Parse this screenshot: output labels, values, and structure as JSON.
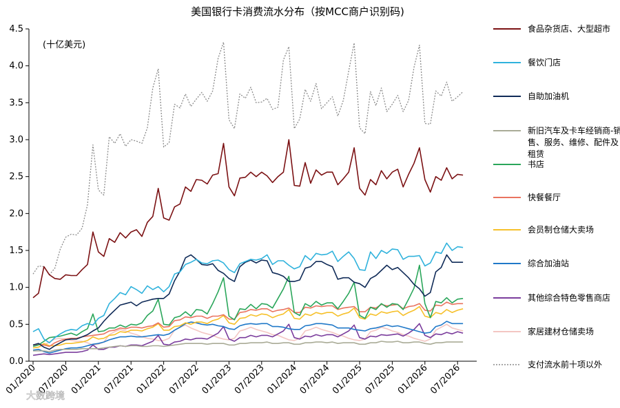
{
  "chart_data": {
    "type": "line",
    "title": "美国银行卡消费流水分布（按MCC商户识别码)",
    "unit_label": "(十亿美元)",
    "ylim": [
      0,
      4.5
    ],
    "y_ticks": [
      "0.0",
      "0.5",
      "1.0",
      "1.5",
      "2.0",
      "2.5",
      "3.0",
      "3.5",
      "4.0",
      "4.5"
    ],
    "x_ticks": [
      "01/2020",
      "07/2020",
      "01/2021",
      "07/2021",
      "01/2022",
      "07/2022",
      "01/2023",
      "07/2023",
      "01/2024",
      "07/2024",
      "01/2025",
      "07/2025",
      "01/2026",
      "07/2026"
    ],
    "x_start": "2020-01",
    "grid": false,
    "legend_position": "right",
    "watermark": "大数跨境",
    "series": [
      {
        "name": "食品杂货店、大型超市",
        "color": "#7b1113",
        "dash": "",
        "values": [
          0.86,
          0.92,
          1.28,
          1.17,
          1.12,
          1.11,
          1.17,
          1.16,
          1.16,
          1.24,
          1.31,
          1.75,
          1.48,
          1.42,
          1.66,
          1.61,
          1.74,
          1.67,
          1.75,
          1.78,
          1.69,
          1.88,
          1.96,
          2.34,
          1.94,
          1.91,
          2.09,
          2.13,
          2.36,
          2.3,
          2.46,
          2.45,
          2.4,
          2.52,
          2.54,
          2.95,
          2.36,
          2.24,
          2.48,
          2.49,
          2.56,
          2.5,
          2.56,
          2.51,
          2.42,
          2.5,
          2.56,
          3.0,
          2.38,
          2.37,
          2.69,
          2.41,
          2.59,
          2.52,
          2.56,
          2.56,
          2.39,
          2.47,
          2.56,
          2.89,
          2.34,
          2.25,
          2.46,
          2.39,
          2.58,
          2.47,
          2.56,
          2.6,
          2.36,
          2.53,
          2.68,
          2.89,
          2.46,
          2.29,
          2.5,
          2.45,
          2.62,
          2.47,
          2.53,
          2.52
        ]
      },
      {
        "name": "餐饮门店",
        "color": "#2fb2dc",
        "dash": "",
        "values": [
          0.4,
          0.44,
          0.3,
          0.25,
          0.32,
          0.37,
          0.41,
          0.43,
          0.42,
          0.48,
          0.51,
          0.49,
          0.58,
          0.62,
          0.78,
          0.85,
          0.93,
          0.9,
          1.01,
          0.97,
          0.92,
          1.02,
          0.97,
          1.01,
          0.94,
          1.01,
          1.18,
          1.21,
          1.31,
          1.34,
          1.38,
          1.33,
          1.32,
          1.36,
          1.37,
          1.33,
          1.24,
          1.2,
          1.32,
          1.35,
          1.38,
          1.37,
          1.39,
          1.44,
          1.31,
          1.36,
          1.36,
          1.3,
          1.25,
          1.28,
          1.43,
          1.37,
          1.46,
          1.44,
          1.45,
          1.49,
          1.35,
          1.42,
          1.48,
          1.39,
          1.24,
          1.23,
          1.48,
          1.39,
          1.5,
          1.46,
          1.52,
          1.51,
          1.38,
          1.42,
          1.42,
          1.43,
          1.29,
          1.33,
          1.48,
          1.46,
          1.6,
          1.5,
          1.55,
          1.54
        ]
      },
      {
        "name": "自助加油机",
        "color": "#0f2a57",
        "dash": "",
        "values": [
          0.22,
          0.24,
          0.19,
          0.16,
          0.21,
          0.25,
          0.29,
          0.3,
          0.3,
          0.33,
          0.36,
          0.41,
          0.45,
          0.54,
          0.62,
          0.69,
          0.76,
          0.78,
          0.8,
          0.75,
          0.8,
          0.82,
          0.84,
          0.85,
          0.85,
          0.91,
          1.09,
          1.22,
          1.4,
          1.44,
          1.38,
          1.31,
          1.3,
          1.32,
          1.23,
          1.19,
          1.12,
          1.08,
          1.28,
          1.34,
          1.37,
          1.33,
          1.37,
          1.36,
          1.2,
          1.18,
          1.15,
          1.08,
          1.08,
          1.1,
          1.26,
          1.28,
          1.35,
          1.35,
          1.31,
          1.28,
          1.11,
          1.13,
          1.13,
          1.07,
          1.05,
          1.0,
          1.12,
          1.16,
          1.23,
          1.3,
          1.24,
          1.27,
          1.2,
          1.13,
          1.04,
          0.98,
          0.88,
          0.93,
          1.21,
          1.27,
          1.44,
          1.34,
          1.34,
          1.34
        ]
      },
      {
        "name": "新旧汽车及卡车经销商-销售、服务、维修、配件及租赁",
        "color": "#a9ab96",
        "dash": "",
        "values": [
          0.14,
          0.14,
          0.14,
          0.13,
          0.15,
          0.16,
          0.16,
          0.16,
          0.16,
          0.17,
          0.17,
          0.17,
          0.17,
          0.18,
          0.19,
          0.2,
          0.21,
          0.2,
          0.21,
          0.21,
          0.2,
          0.2,
          0.21,
          0.21,
          0.2,
          0.21,
          0.22,
          0.23,
          0.24,
          0.24,
          0.24,
          0.24,
          0.23,
          0.24,
          0.24,
          0.24,
          0.22,
          0.22,
          0.24,
          0.24,
          0.25,
          0.25,
          0.25,
          0.26,
          0.24,
          0.24,
          0.25,
          0.25,
          0.23,
          0.23,
          0.25,
          0.25,
          0.26,
          0.26,
          0.25,
          0.26,
          0.24,
          0.25,
          0.25,
          0.25,
          0.23,
          0.23,
          0.25,
          0.25,
          0.27,
          0.26,
          0.26,
          0.27,
          0.25,
          0.25,
          0.26,
          0.26,
          0.24,
          0.23,
          0.25,
          0.25,
          0.26,
          0.26,
          0.26,
          0.26
        ]
      },
      {
        "name": "书店",
        "color": "#2aa65a",
        "dash": "",
        "values": [
          0.2,
          0.22,
          0.27,
          0.32,
          0.33,
          0.34,
          0.36,
          0.38,
          0.35,
          0.4,
          0.44,
          0.64,
          0.4,
          0.41,
          0.45,
          0.45,
          0.49,
          0.46,
          0.5,
          0.49,
          0.52,
          0.62,
          0.68,
          0.84,
          0.5,
          0.49,
          0.59,
          0.61,
          0.67,
          0.61,
          0.7,
          0.69,
          0.64,
          0.78,
          0.94,
          1.13,
          0.61,
          0.56,
          0.71,
          0.7,
          0.77,
          0.71,
          0.78,
          0.77,
          0.72,
          0.85,
          0.98,
          1.15,
          0.66,
          0.62,
          0.78,
          0.74,
          0.81,
          0.76,
          0.79,
          0.79,
          0.71,
          0.81,
          0.92,
          1.07,
          0.62,
          0.58,
          0.73,
          0.7,
          0.78,
          0.73,
          0.78,
          0.77,
          0.7,
          0.84,
          0.99,
          1.3,
          0.78,
          0.59,
          0.81,
          0.79,
          0.86,
          0.79,
          0.84,
          0.85
        ]
      },
      {
        "name": "快餐餐厅",
        "color": "#e9735f",
        "dash": "",
        "values": [
          0.22,
          0.23,
          0.22,
          0.2,
          0.25,
          0.28,
          0.3,
          0.31,
          0.31,
          0.33,
          0.34,
          0.35,
          0.36,
          0.37,
          0.41,
          0.42,
          0.45,
          0.44,
          0.46,
          0.46,
          0.45,
          0.47,
          0.48,
          0.52,
          0.46,
          0.47,
          0.55,
          0.56,
          0.6,
          0.59,
          0.61,
          0.61,
          0.58,
          0.61,
          0.61,
          0.63,
          0.57,
          0.57,
          0.66,
          0.67,
          0.7,
          0.69,
          0.71,
          0.71,
          0.67,
          0.69,
          0.7,
          0.72,
          0.66,
          0.66,
          0.73,
          0.72,
          0.75,
          0.74,
          0.75,
          0.75,
          0.7,
          0.72,
          0.73,
          0.74,
          0.67,
          0.67,
          0.73,
          0.72,
          0.77,
          0.75,
          0.76,
          0.77,
          0.71,
          0.74,
          0.75,
          0.78,
          0.69,
          0.68,
          0.76,
          0.75,
          0.8,
          0.77,
          0.78,
          0.78
        ]
      },
      {
        "name": "会员制仓储大卖场",
        "color": "#f6c02a",
        "dash": "",
        "values": [
          0.18,
          0.19,
          0.24,
          0.21,
          0.21,
          0.22,
          0.24,
          0.24,
          0.25,
          0.26,
          0.28,
          0.33,
          0.3,
          0.31,
          0.35,
          0.36,
          0.4,
          0.39,
          0.42,
          0.42,
          0.41,
          0.44,
          0.46,
          0.51,
          0.42,
          0.42,
          0.47,
          0.48,
          0.52,
          0.5,
          0.53,
          0.53,
          0.51,
          0.55,
          0.57,
          0.62,
          0.52,
          0.5,
          0.58,
          0.59,
          0.63,
          0.61,
          0.64,
          0.63,
          0.59,
          0.62,
          0.64,
          0.7,
          0.58,
          0.57,
          0.64,
          0.62,
          0.66,
          0.64,
          0.66,
          0.66,
          0.61,
          0.64,
          0.66,
          0.72,
          0.59,
          0.57,
          0.64,
          0.62,
          0.67,
          0.65,
          0.67,
          0.68,
          0.62,
          0.66,
          0.69,
          0.74,
          0.61,
          0.59,
          0.66,
          0.64,
          0.7,
          0.66,
          0.69,
          0.71
        ]
      },
      {
        "name": "综合加油站",
        "color": "#1f78c8",
        "dash": "",
        "values": [
          0.15,
          0.16,
          0.13,
          0.11,
          0.13,
          0.15,
          0.17,
          0.18,
          0.18,
          0.19,
          0.21,
          0.23,
          0.24,
          0.26,
          0.29,
          0.31,
          0.33,
          0.33,
          0.34,
          0.33,
          0.33,
          0.34,
          0.35,
          0.36,
          0.35,
          0.37,
          0.42,
          0.46,
          0.51,
          0.53,
          0.52,
          0.5,
          0.49,
          0.5,
          0.48,
          0.47,
          0.44,
          0.43,
          0.48,
          0.5,
          0.51,
          0.5,
          0.51,
          0.51,
          0.47,
          0.47,
          0.46,
          0.44,
          0.43,
          0.43,
          0.48,
          0.49,
          0.51,
          0.51,
          0.5,
          0.49,
          0.45,
          0.45,
          0.45,
          0.43,
          0.42,
          0.41,
          0.44,
          0.45,
          0.47,
          0.49,
          0.47,
          0.48,
          0.46,
          0.44,
          0.42,
          0.4,
          0.38,
          0.39,
          0.47,
          0.49,
          0.54,
          0.51,
          0.51,
          0.51
        ]
      },
      {
        "name": "其他综合特色零售商店",
        "color": "#7a3c9c",
        "dash": "",
        "values": [
          0.08,
          0.09,
          0.1,
          0.09,
          0.1,
          0.11,
          0.12,
          0.12,
          0.12,
          0.13,
          0.15,
          0.22,
          0.16,
          0.16,
          0.19,
          0.19,
          0.21,
          0.2,
          0.22,
          0.22,
          0.21,
          0.24,
          0.27,
          0.35,
          0.23,
          0.22,
          0.26,
          0.27,
          0.3,
          0.29,
          0.31,
          0.31,
          0.3,
          0.34,
          0.38,
          0.47,
          0.3,
          0.27,
          0.32,
          0.32,
          0.35,
          0.33,
          0.35,
          0.35,
          0.33,
          0.37,
          0.41,
          0.5,
          0.32,
          0.3,
          0.34,
          0.33,
          0.36,
          0.34,
          0.36,
          0.36,
          0.33,
          0.37,
          0.41,
          0.49,
          0.32,
          0.3,
          0.34,
          0.33,
          0.36,
          0.35,
          0.36,
          0.37,
          0.34,
          0.38,
          0.43,
          0.51,
          0.35,
          0.32,
          0.37,
          0.36,
          0.39,
          0.37,
          0.4,
          0.38
        ]
      },
      {
        "name": "家居建材仓储卖场",
        "color": "#f3c6c2",
        "dash": "",
        "values": [
          0.18,
          0.19,
          0.22,
          0.26,
          0.3,
          0.31,
          0.3,
          0.28,
          0.27,
          0.27,
          0.25,
          0.22,
          0.23,
          0.26,
          0.36,
          0.4,
          0.43,
          0.41,
          0.38,
          0.36,
          0.33,
          0.31,
          0.3,
          0.28,
          0.28,
          0.31,
          0.42,
          0.46,
          0.49,
          0.45,
          0.42,
          0.39,
          0.37,
          0.35,
          0.32,
          0.3,
          0.29,
          0.31,
          0.41,
          0.43,
          0.46,
          0.43,
          0.41,
          0.39,
          0.36,
          0.35,
          0.32,
          0.29,
          0.28,
          0.31,
          0.41,
          0.43,
          0.46,
          0.43,
          0.41,
          0.39,
          0.36,
          0.34,
          0.31,
          0.29,
          0.28,
          0.3,
          0.4,
          0.42,
          0.46,
          0.44,
          0.41,
          0.39,
          0.36,
          0.34,
          0.31,
          0.29,
          0.27,
          0.3,
          0.42,
          0.46,
          0.5,
          0.45,
          0.43,
          0.41
        ]
      },
      {
        "name": "支付流水前十项以外",
        "color": "#8a8a8a",
        "dash": "2,2",
        "values": [
          1.18,
          1.29,
          1.28,
          1.17,
          1.26,
          1.52,
          1.68,
          1.72,
          1.71,
          1.8,
          2.12,
          2.93,
          2.32,
          2.25,
          3.04,
          2.95,
          3.08,
          2.91,
          3.0,
          2.98,
          2.95,
          3.16,
          3.7,
          3.96,
          2.9,
          2.96,
          3.48,
          3.43,
          3.62,
          3.45,
          3.55,
          3.64,
          3.52,
          3.66,
          4.1,
          4.32,
          3.27,
          3.15,
          3.62,
          3.56,
          3.71,
          3.5,
          3.51,
          3.56,
          3.41,
          3.44,
          4.08,
          4.26,
          3.15,
          3.28,
          3.68,
          3.52,
          3.76,
          3.42,
          3.5,
          3.58,
          3.32,
          3.53,
          3.93,
          4.31,
          3.16,
          3.08,
          3.65,
          3.46,
          3.7,
          3.38,
          3.48,
          3.6,
          3.38,
          3.53,
          3.98,
          4.28,
          3.22,
          3.21,
          3.66,
          3.59,
          3.78,
          3.52,
          3.58,
          3.65
        ]
      }
    ]
  }
}
